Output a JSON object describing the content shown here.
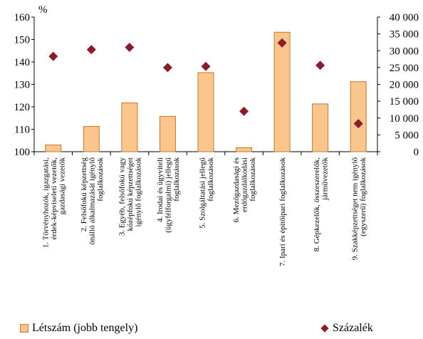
{
  "chart_data": {
    "type": "bar",
    "unit_label": "%",
    "categories": [
      [
        "1. Törvényhozók, igazgatási,",
        "érdek-képviseleti vezetők,",
        "gazdasági vezetők"
      ],
      [
        "2. Felsőfokú képzettség",
        "önálló alkalmazását igénylő",
        "foglalkozások"
      ],
      [
        "3. Egyéb, felsőfokú vagy",
        "középfokú képzettséget",
        "igénylő foglalkozások"
      ],
      [
        "4. Irodai és ügyviteli",
        "(ügyfélforgalmi) jellegű",
        "foglalkozások"
      ],
      [
        "5. Szolgáltatási jellegű",
        "foglalkozások"
      ],
      [
        "6. Mezőgazdasági és",
        "erdőgazdálkodási",
        "foglalkozások"
      ],
      [
        "7. Ipari és építőipari foglalkozások"
      ],
      [
        "8. Gépkezelők, összeszerelők,",
        "járművezetők"
      ],
      [
        "9. Szakképzettséget nem igénylő",
        "(egyszerű) foglalkozások"
      ]
    ],
    "series": [
      {
        "name": "Létszám (jobb tengely)",
        "type": "bar",
        "axis": "right",
        "color": "#fbc58e",
        "values": [
          2000,
          7500,
          14500,
          10500,
          23500,
          1200,
          35500,
          14200,
          20800
        ]
      },
      {
        "name": "Százalék",
        "type": "scatter",
        "axis": "left",
        "color": "#8b1a2a",
        "values": [
          142.5,
          145.5,
          146.5,
          137.5,
          138.0,
          118.0,
          148.5,
          138.5,
          112.5
        ]
      }
    ],
    "left_axis": {
      "min": 100,
      "max": 160,
      "ticks": [
        "100",
        "110",
        "120",
        "130",
        "140",
        "150",
        "160"
      ]
    },
    "right_axis": {
      "min": 0,
      "max": 40000,
      "ticks": [
        "0",
        "5 000",
        "10 000",
        "15 000",
        "20 000",
        "25 000",
        "30 000",
        "35 000",
        "40 000"
      ]
    },
    "grid": false,
    "legend_position": "bottom"
  },
  "legend": {
    "bar_label": "Létszám (jobb tengely)",
    "marker_label": "Százalék"
  }
}
